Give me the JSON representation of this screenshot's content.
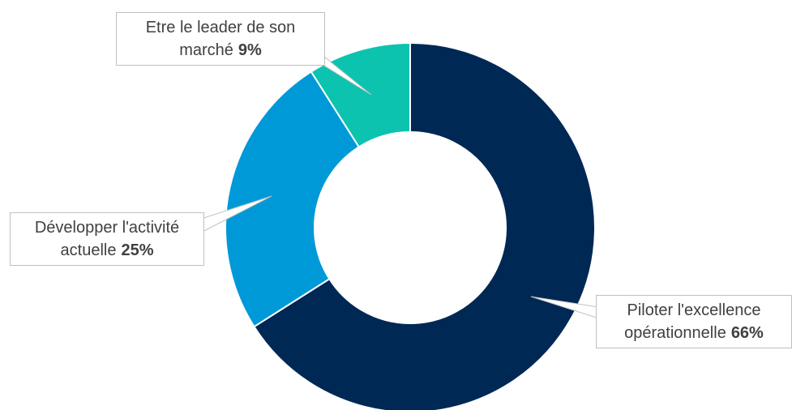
{
  "chart_data": {
    "type": "donut",
    "categories": [
      "Piloter l'excellence opérationnelle",
      "Développer l'activité actuelle",
      "Etre le leader de son marché"
    ],
    "values": [
      66,
      25,
      9
    ],
    "value_labels": [
      "66%",
      "25%",
      "9%"
    ],
    "colors": [
      "#002855",
      "#0099d8",
      "#0cc3b0"
    ]
  }
}
